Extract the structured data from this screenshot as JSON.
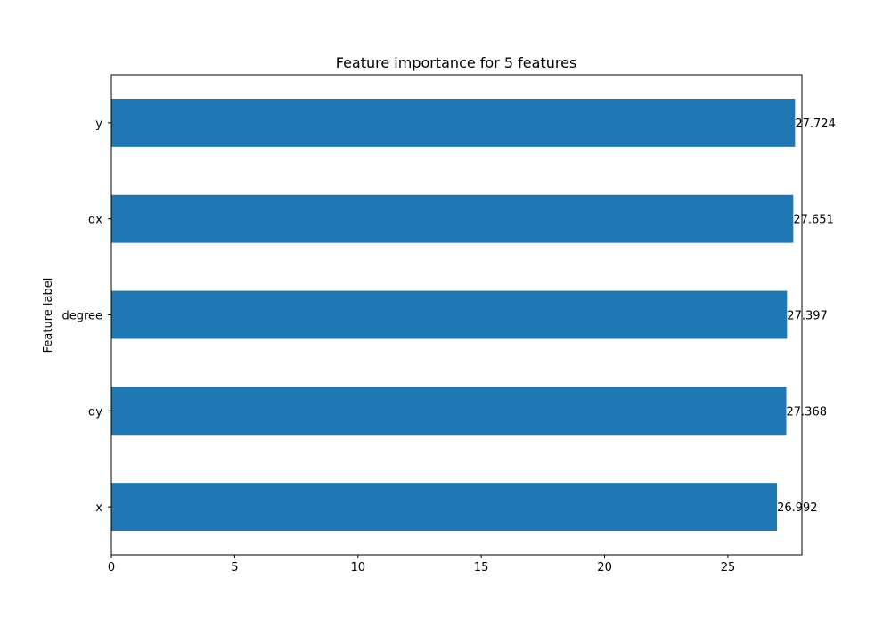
{
  "chart_data": {
    "type": "bar",
    "orientation": "horizontal",
    "title": "Feature importance for 5 features",
    "xlabel": "",
    "ylabel": "Feature label",
    "categories": [
      "y",
      "dx",
      "degree",
      "dy",
      "x"
    ],
    "values": [
      27.724,
      27.651,
      27.397,
      27.368,
      26.992
    ],
    "data_labels": [
      "27.724",
      "27.651",
      "27.397",
      "27.368",
      "26.992"
    ],
    "xlim": [
      0,
      28.0
    ],
    "xticks": [
      0,
      5,
      10,
      15,
      20,
      25
    ],
    "grid": false,
    "legend": false,
    "bar_color": "#1f77b4"
  }
}
